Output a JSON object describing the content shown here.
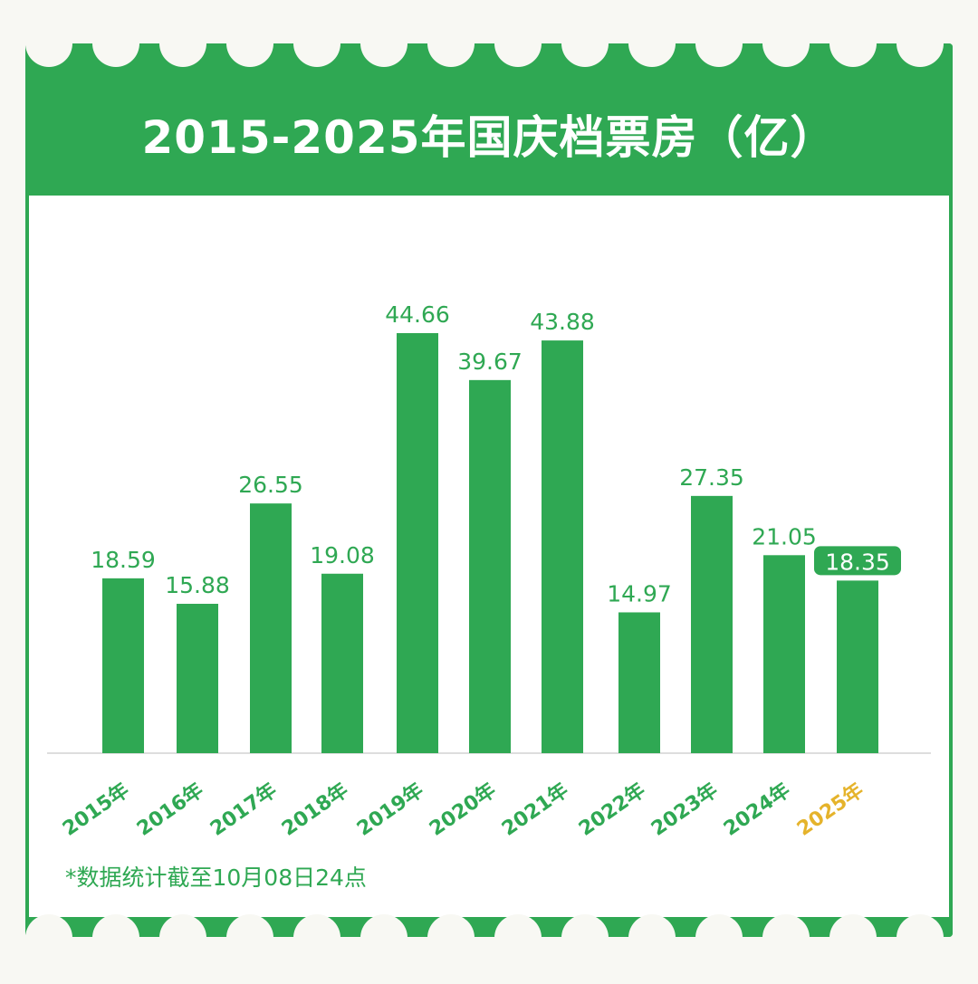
{
  "title": "2015-2025年国庆档票房（亿）",
  "note": "*数据统计截至10月08日24点",
  "colors": {
    "accent": "#2fa853",
    "highlight": "#e5b32b",
    "background": "#f8f8f3",
    "card": "#ffffff"
  },
  "chart_data": {
    "type": "bar",
    "title": "2015-2025年国庆档票房（亿）",
    "xlabel": "",
    "ylabel": "",
    "categories": [
      "2015年",
      "2016年",
      "2017年",
      "2018年",
      "2019年",
      "2020年",
      "2021年",
      "2022年",
      "2023年",
      "2024年",
      "2025年"
    ],
    "values": [
      18.59,
      15.88,
      26.55,
      19.08,
      44.66,
      39.67,
      43.88,
      14.97,
      27.35,
      21.05,
      18.35
    ],
    "value_labels": [
      "18.59",
      "15.88",
      "26.55",
      "19.08",
      "44.66",
      "39.67",
      "43.88",
      "14.97",
      "27.35",
      "21.05",
      "18.35"
    ],
    "highlight_category": "2025年",
    "ylim": [
      0,
      50
    ],
    "grid": false,
    "legend": "none"
  }
}
